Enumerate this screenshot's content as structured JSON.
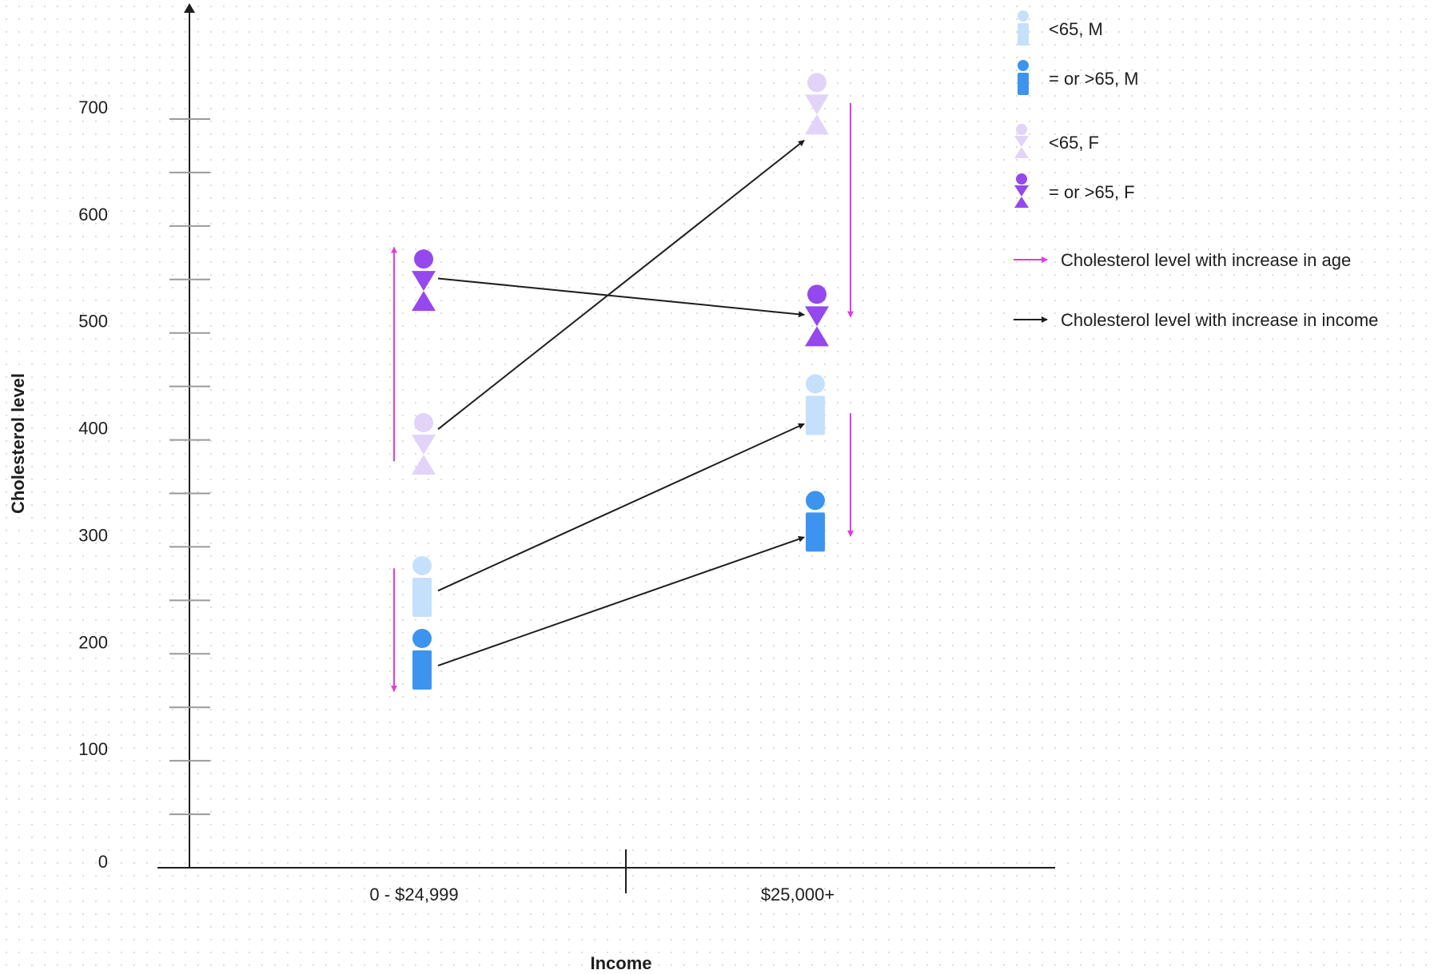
{
  "chart_data": {
    "type": "scatter",
    "title": "",
    "xlabel": "Income",
    "ylabel": "Cholesterol level",
    "ylim": [
      0,
      700
    ],
    "yticks": [
      0,
      100,
      200,
      300,
      400,
      500,
      600,
      700
    ],
    "minor_tick_step": 50,
    "categories": [
      "0 - $24,999",
      "$25,000+"
    ],
    "grid": false,
    "legend_position": "top-right",
    "series": [
      {
        "name": "<65, M",
        "shape": "male",
        "color": "#c5e0fb",
        "values": [
          260,
          430
        ]
      },
      {
        "name": "= or >65, M",
        "shape": "male",
        "color": "#3d94ef",
        "values": [
          192,
          321
        ]
      },
      {
        "name": "<65, F",
        "shape": "female",
        "color": "#e2d3f9",
        "values": [
          390,
          708
        ]
      },
      {
        "name": "= or >65, F",
        "shape": "female",
        "color": "#9548ed",
        "values": [
          543,
          510
        ]
      }
    ],
    "arrow_legend": [
      {
        "label": "Cholesterol level with increase in age",
        "color": "#e33be0"
      },
      {
        "label": "Cholesterol level with increase in income",
        "color": "#1e1e1e"
      }
    ],
    "income_arrows": [
      {
        "from": [
          0,
          410
        ],
        "to": [
          1,
          680
        ]
      },
      {
        "from": [
          0,
          551
        ],
        "to": [
          1,
          517
        ]
      },
      {
        "from": [
          0,
          259
        ],
        "to": [
          1,
          415
        ]
      },
      {
        "from": [
          0,
          189
        ],
        "to": [
          1,
          309
        ]
      }
    ],
    "age_arrows": [
      {
        "category": 0,
        "from": 380,
        "to": 580
      },
      {
        "category": 0,
        "from": 280,
        "to": 165
      },
      {
        "category": 1,
        "from": 715,
        "to": 515
      },
      {
        "category": 1,
        "from": 425,
        "to": 310
      }
    ]
  }
}
